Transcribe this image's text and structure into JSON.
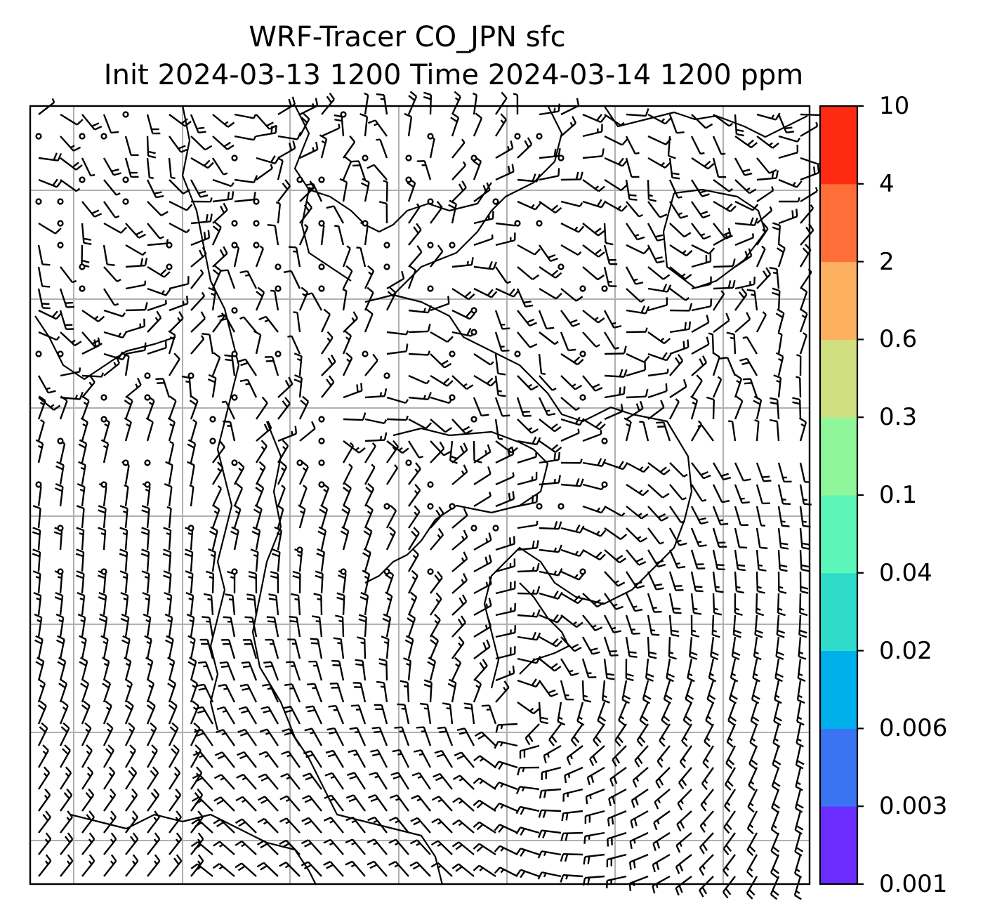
{
  "title": {
    "line1": "WRF-Tracer CO_JPN sfc",
    "line2": "Init 2024-03-13 1200 Time 2024-03-14 1200 ppm"
  },
  "colorbar": {
    "levels": [
      "0.001",
      "0.003",
      "0.006",
      "0.02",
      "0.04",
      "0.1",
      "0.3",
      "0.6",
      "2",
      "4",
      "10"
    ],
    "colors": [
      "#6a2cff",
      "#3a74f2",
      "#00b0ea",
      "#2fdcc9",
      "#5cf7b8",
      "#8ff79a",
      "#d0e080",
      "#fdb060",
      "#ff6e38",
      "#ff2a12"
    ]
  },
  "map": {
    "frame_color": "#000000",
    "gridline_color": "#b0b0b0",
    "gridline_columns": 7,
    "gridline_rows": 8,
    "coastline_color": "#000000",
    "barb_color": "#000000"
  }
}
